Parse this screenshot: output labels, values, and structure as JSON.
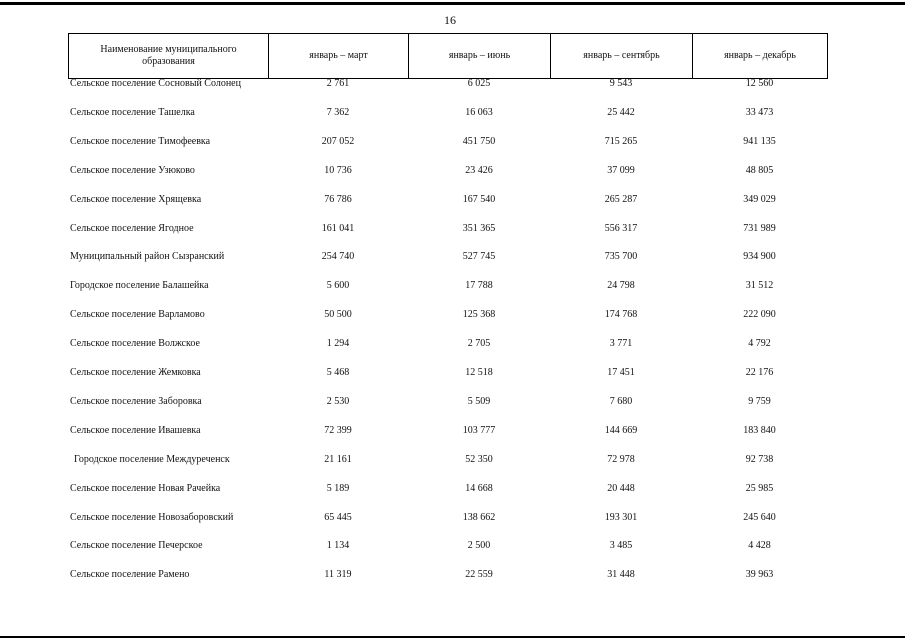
{
  "page_number": "16",
  "table": {
    "header": [
      "Наименование муниципального образования",
      "январь – март",
      "январь – июнь",
      "январь – сентябрь",
      "январь – декабрь"
    ],
    "rows": [
      [
        "Сельское поселение Сосновый Солонец",
        "2 761",
        "6 025",
        "9 543",
        "12 560"
      ],
      [
        "Сельское поселение Ташелка",
        "7 362",
        "16 063",
        "25 442",
        "33 473"
      ],
      [
        "Сельское поселение Тимофеевка",
        "207 052",
        "451 750",
        "715 265",
        "941 135"
      ],
      [
        "Сельское поселение Узюково",
        "10 736",
        "23 426",
        "37 099",
        "48 805"
      ],
      [
        "Сельское поселение Хрящевка",
        "76 786",
        "167 540",
        "265 287",
        "349 029"
      ],
      [
        "Сельское поселение Ягодное",
        "161 041",
        "351 365",
        "556 317",
        "731 989"
      ],
      [
        "Муниципальный район Сызранский",
        "254 740",
        "527 745",
        "735 700",
        "934 900"
      ],
      [
        "Городское поселение Балашейка",
        "5 600",
        "17 788",
        "24 798",
        "31 512"
      ],
      [
        "Сельское поселение Варламово",
        "50 500",
        "125 368",
        "174 768",
        "222 090"
      ],
      [
        "Сельское поселение Волжское",
        "1 294",
        "2 705",
        "3 771",
        "4 792"
      ],
      [
        "Сельское поселение Жемковка",
        "5 468",
        "12 518",
        "17 451",
        "22 176"
      ],
      [
        "Сельское поселение Заборовка",
        "2 530",
        "5 509",
        "7 680",
        "9 759"
      ],
      [
        "Сельское поселение Ивашевка",
        "72 399",
        "103 777",
        "144 669",
        "183 840"
      ],
      [
        "Городское поселение Междуреченск",
        "21 161",
        "52 350",
        "72 978",
        "92 738"
      ],
      [
        "Сельское поселение Новая Рачейка",
        "5 189",
        "14 668",
        "20 448",
        "25 985"
      ],
      [
        "Сельское поселение Новозаборовский",
        "65 445",
        "138 662",
        "193 301",
        "245 640"
      ],
      [
        "Сельское поселение Печерское",
        "1 134",
        "2 500",
        "3 485",
        "4 428"
      ],
      [
        "Сельское поселение Рамено",
        "11 319",
        "22 559",
        "31 448",
        "39 963"
      ]
    ]
  }
}
